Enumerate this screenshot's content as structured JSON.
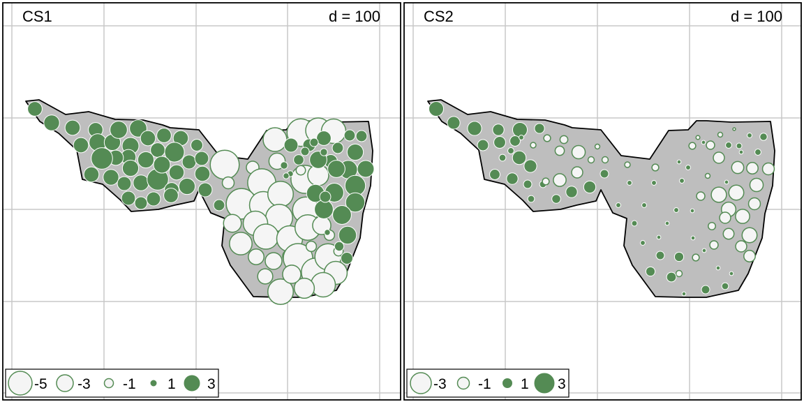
{
  "figure": {
    "panels": [
      {
        "title": "CS1",
        "scale_label": "d = 100",
        "legend": [
          "-5",
          "-3",
          "-1",
          "1",
          "3"
        ]
      },
      {
        "title": "CS2",
        "scale_label": "d = 100",
        "legend": [
          "-3",
          "-1",
          "1",
          "3"
        ]
      }
    ]
  },
  "colors": {
    "positive": "#548b54",
    "negative_fill": "#f5f5f5",
    "outline_stroke": "#548b54",
    "region_fill": "#bebebe",
    "grid": "#c8c8c8",
    "frame": "#000000"
  },
  "chart_data": [
    {
      "type": "scatter",
      "title": "CS1",
      "annotation": "d = 100",
      "encoding": "bubble map: circle area proportional to |value|, filled green = positive, open white = negative",
      "legend_values": [
        -5,
        -3,
        -1,
        1,
        3
      ],
      "points": [
        [
          50,
          156,
          1.2
        ],
        [
          74,
          176,
          1.4
        ],
        [
          104,
          183,
          1.3
        ],
        [
          116,
          208,
          1.3
        ],
        [
          137,
          186,
          1.2
        ],
        [
          140,
          204,
          1.7
        ],
        [
          161,
          204,
          1.5
        ],
        [
          170,
          186,
          1.7
        ],
        [
          187,
          209,
          1.6
        ],
        [
          198,
          184,
          1.7
        ],
        [
          212,
          198,
          1.3
        ],
        [
          235,
          194,
          1.2
        ],
        [
          259,
          198,
          1.3
        ],
        [
          282,
          208,
          0.8
        ],
        [
          226,
          215,
          1.2
        ],
        [
          209,
          229,
          1.5
        ],
        [
          250,
          218,
          2.2
        ],
        [
          184,
          225,
          1.3
        ],
        [
          166,
          226,
          1.3
        ],
        [
          146,
          227,
          2.6
        ],
        [
          131,
          250,
          1.3
        ],
        [
          159,
          254,
          1.4
        ],
        [
          178,
          263,
          1.1
        ],
        [
          202,
          262,
          1.4
        ],
        [
          226,
          257,
          2.6
        ],
        [
          246,
          272,
          1.2
        ],
        [
          268,
          267,
          1.5
        ],
        [
          271,
          232,
          1.1
        ],
        [
          290,
          249,
          1.3
        ],
        [
          294,
          272,
          1.1
        ],
        [
          289,
          227,
          1.1
        ],
        [
          253,
          247,
          1.3
        ],
        [
          232,
          236,
          1.6
        ],
        [
          187,
          241,
          1.5
        ],
        [
          184,
          284,
          1.1
        ],
        [
          202,
          291,
          0.9
        ],
        [
          220,
          285,
          1.1
        ],
        [
          245,
          280,
          1.2
        ],
        [
          314,
          294,
          0.7
        ],
        [
          322,
          236,
          -4.8
        ],
        [
          327,
          262,
          -0.8
        ],
        [
          362,
          240,
          -0.9
        ],
        [
          394,
          200,
          -3.2
        ],
        [
          397,
          231,
          -1.5
        ],
        [
          375,
          262,
          -4.5
        ],
        [
          346,
          292,
          -5.3
        ],
        [
          377,
          294,
          -4.2
        ],
        [
          402,
          278,
          -3.7
        ],
        [
          400,
          312,
          -4.1
        ],
        [
          366,
          320,
          -3.4
        ],
        [
          333,
          320,
          -1.8
        ],
        [
          345,
          349,
          -2.9
        ],
        [
          381,
          339,
          -3.6
        ],
        [
          415,
          342,
          -3.8
        ],
        [
          367,
          368,
          -1.4
        ],
        [
          392,
          374,
          -1.6
        ],
        [
          414,
          367,
          -0.9
        ],
        [
          431,
          190,
          -4.3
        ],
        [
          456,
          187,
          -3.6
        ],
        [
          478,
          188,
          -3.4
        ],
        [
          437,
          257,
          -4.5
        ],
        [
          456,
          251,
          -2.5
        ],
        [
          438,
          301,
          -3.9
        ],
        [
          441,
          326,
          -3.7
        ],
        [
          461,
          323,
          -1.9
        ],
        [
          427,
          370,
          -4.9
        ],
        [
          452,
          390,
          -4.5
        ],
        [
          470,
          368,
          -3.9
        ],
        [
          481,
          391,
          -3.0
        ],
        [
          463,
          408,
          -3.4
        ],
        [
          436,
          413,
          -2.3
        ],
        [
          402,
          418,
          -3.7
        ],
        [
          380,
          396,
          -1.3
        ],
        [
          418,
          393,
          -1.9
        ],
        [
          446,
          353,
          -0.6
        ],
        [
          472,
          337,
          -0.6
        ],
        [
          485,
          360,
          -0.5
        ],
        [
          431,
          244,
          -0.5
        ],
        [
          417,
          208,
          1.1
        ],
        [
          443,
          208,
          0.9
        ],
        [
          464,
          198,
          1.2
        ],
        [
          474,
          231,
          1.0
        ],
        [
          484,
          212,
          0.7
        ],
        [
          501,
          194,
          0.7
        ],
        [
          518,
          195,
          0.7
        ],
        [
          509,
          218,
          1.5
        ],
        [
          499,
          243,
          1.9
        ],
        [
          524,
          242,
          1.6
        ],
        [
          509,
          266,
          2.4
        ],
        [
          509,
          290,
          2.1
        ],
        [
          482,
          242,
          1.7
        ],
        [
          456,
          229,
          1.7
        ],
        [
          452,
          277,
          1.8
        ],
        [
          479,
          276,
          2.0
        ],
        [
          464,
          300,
          2.0
        ],
        [
          490,
          308,
          2.0
        ],
        [
          498,
          337,
          1.8
        ],
        [
          486,
          353,
          0.5
        ],
        [
          469,
          333,
          0.2
        ],
        [
          464,
          218,
          0.3
        ],
        [
          416,
          249,
          0.2
        ],
        [
          410,
          252,
          0.2
        ],
        [
          407,
          237,
          0.3
        ],
        [
          428,
          229,
          0.6
        ],
        [
          437,
          217,
          0.4
        ],
        [
          450,
          204,
          0.4
        ],
        [
          497,
          370,
          0.8
        ],
        [
          466,
          282,
          0.7
        ]
      ],
      "outline": "concave region polygon (study area boundary)",
      "grid": true
    },
    {
      "type": "scatter",
      "title": "CS2",
      "annotation": "d = 100",
      "encoding": "bubble map: circle area proportional to |value|, filled green = positive, open white = negative",
      "legend_values": [
        -3,
        -1,
        1,
        3
      ],
      "points": [
        [
          625,
          156,
          2.8
        ],
        [
          650,
          176,
          2.1
        ],
        [
          680,
          184,
          2.6
        ],
        [
          692,
          208,
          1.6
        ],
        [
          714,
          186,
          1.7
        ],
        [
          716,
          204,
          1.8
        ],
        [
          745,
          186,
          2.8
        ],
        [
          738,
          202,
          1.4
        ],
        [
          773,
          184,
          1.3
        ],
        [
          744,
          226,
          2.4
        ],
        [
          760,
          238,
          2.1
        ],
        [
          720,
          226,
          0.6
        ],
        [
          732,
          216,
          0.5
        ],
        [
          709,
          250,
          1.4
        ],
        [
          734,
          256,
          1.7
        ],
        [
          756,
          264,
          0.9
        ],
        [
          778,
          264,
          0.6
        ],
        [
          797,
          285,
          1.0
        ],
        [
          819,
          275,
          1.7
        ],
        [
          845,
          268,
          1.9
        ],
        [
          866,
          249,
          0.9
        ],
        [
          761,
          285,
          0.6
        ],
        [
          747,
          197,
          0.3
        ],
        [
          764,
          208,
          -0.4
        ],
        [
          784,
          198,
          -0.6
        ],
        [
          808,
          200,
          -0.8
        ],
        [
          802,
          216,
          -1.1
        ],
        [
          829,
          218,
          -2.3
        ],
        [
          827,
          247,
          -1.6
        ],
        [
          802,
          258,
          -2.1
        ],
        [
          782,
          260,
          -0.6
        ],
        [
          847,
          229,
          -0.5
        ],
        [
          867,
          229,
          -0.5
        ],
        [
          899,
          236,
          -0.4
        ],
        [
          939,
          240,
          -0.6
        ],
        [
          992,
          209,
          -0.6
        ],
        [
          1018,
          208,
          -0.9
        ],
        [
          1030,
          226,
          -1.6
        ],
        [
          1057,
          240,
          -1.9
        ],
        [
          1078,
          241,
          -1.7
        ],
        [
          1101,
          242,
          -1.8
        ],
        [
          1084,
          265,
          -2.3
        ],
        [
          1081,
          292,
          -1.8
        ],
        [
          1055,
          276,
          -2.9
        ],
        [
          1030,
          279,
          -3.0
        ],
        [
          1044,
          300,
          -2.7
        ],
        [
          1064,
          310,
          -2.6
        ],
        [
          1039,
          312,
          -1.6
        ],
        [
          1020,
          324,
          -0.7
        ],
        [
          1044,
          335,
          -1.5
        ],
        [
          1074,
          337,
          -2.9
        ],
        [
          1062,
          353,
          -1.6
        ],
        [
          1074,
          367,
          -1.7
        ],
        [
          1023,
          351,
          -0.9
        ],
        [
          1004,
          281,
          -0.9
        ],
        [
          1032,
          193,
          -0.3
        ],
        [
          1014,
          252,
          -0.3
        ],
        [
          856,
          210,
          -0.3
        ],
        [
          997,
          369,
          -0.6
        ],
        [
          973,
          392,
          -0.5
        ],
        [
          1000,
          197,
          -0.2
        ],
        [
          1052,
          185,
          -0.1
        ],
        [
          932,
          389,
          1.1
        ],
        [
          946,
          366,
          0.9
        ],
        [
          973,
          368,
          1.1
        ],
        [
          962,
          397,
          1.2
        ],
        [
          1011,
          415,
          0.9
        ],
        [
          1039,
          410,
          0.6
        ],
        [
          1094,
          196,
          0.7
        ],
        [
          1074,
          194,
          0.3
        ],
        [
          1086,
          218,
          0.5
        ],
        [
          1044,
          208,
          0.5
        ],
        [
          1059,
          209,
          0.4
        ],
        [
          902,
          262,
          0.3
        ],
        [
          937,
          262,
          0.3
        ],
        [
          909,
          320,
          0.4
        ],
        [
          921,
          348,
          0.3
        ],
        [
          923,
          294,
          0.3
        ],
        [
          969,
          301,
          0.3
        ],
        [
          977,
          259,
          0.3
        ],
        [
          986,
          240,
          0.3
        ],
        [
          992,
          302,
          0.2
        ],
        [
          956,
          320,
          0.2
        ],
        [
          993,
          341,
          0.2
        ],
        [
          1029,
          384,
          0.2
        ],
        [
          1048,
          392,
          0.2
        ],
        [
          1008,
          204,
          0.2
        ],
        [
          886,
          294,
          0.3
        ],
        [
          944,
          340,
          0.2
        ],
        [
          973,
          232,
          0.2
        ],
        [
          1062,
          218,
          0.2
        ],
        [
          1041,
          261,
          0.2
        ],
        [
          1009,
          359,
          0.2
        ],
        [
          980,
          421,
          0.2
        ]
      ],
      "outline": "concave region polygon (study area boundary)",
      "grid": true
    }
  ]
}
